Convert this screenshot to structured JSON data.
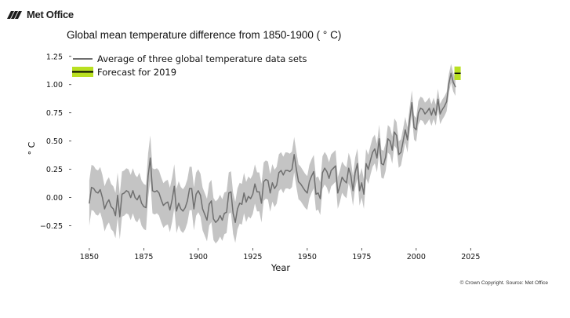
{
  "brand": {
    "name": "Met Office",
    "logo_icon": "met-office-stripes-icon"
  },
  "copyright": "© Crown Copyright. Source: Met Office",
  "chart_data": {
    "type": "line",
    "title": "Global mean temperature difference from 1850-1900 ( ° C)",
    "xlabel": "Year",
    "ylabel": "° C",
    "xlim": [
      1845,
      2031
    ],
    "ylim": [
      -0.42,
      1.29
    ],
    "xticks": [
      1850,
      1875,
      1900,
      1925,
      1950,
      1975,
      2000,
      2025
    ],
    "yticks": [
      -0.25,
      0.0,
      0.25,
      0.5,
      0.75,
      1.0,
      1.25
    ],
    "ytick_labels": [
      "−0.25",
      "0.00",
      "0.25",
      "0.50",
      "0.75",
      "1.00",
      "1.25"
    ],
    "grid": false,
    "legend_placement": "top-left",
    "colors": {
      "series": "#6f6f6f",
      "band": "#c4c4c4",
      "forecast": "#b9e021",
      "forecast_line": "#000000"
    },
    "series": [
      {
        "name": "Average of three global temperature data sets",
        "uncertainty_half_width": [
          0.2,
          0.2,
          0.18,
          0.15,
          0.12,
          0.08
        ],
        "uncertainty_years": [
          1850,
          1880,
          1920,
          1950,
          1990,
          2018
        ],
        "x": [
          1850,
          1851,
          1852,
          1853,
          1854,
          1855,
          1856,
          1857,
          1858,
          1859,
          1860,
          1861,
          1862,
          1863,
          1864,
          1865,
          1866,
          1867,
          1868,
          1869,
          1870,
          1871,
          1872,
          1873,
          1874,
          1875,
          1876,
          1877,
          1878,
          1879,
          1880,
          1881,
          1882,
          1883,
          1884,
          1885,
          1886,
          1887,
          1888,
          1889,
          1890,
          1891,
          1892,
          1893,
          1894,
          1895,
          1896,
          1897,
          1898,
          1899,
          1900,
          1901,
          1902,
          1903,
          1904,
          1905,
          1906,
          1907,
          1908,
          1909,
          1910,
          1911,
          1912,
          1913,
          1914,
          1915,
          1916,
          1917,
          1918,
          1919,
          1920,
          1921,
          1922,
          1923,
          1924,
          1925,
          1926,
          1927,
          1928,
          1929,
          1930,
          1931,
          1932,
          1933,
          1934,
          1935,
          1936,
          1937,
          1938,
          1939,
          1940,
          1941,
          1942,
          1943,
          1944,
          1945,
          1946,
          1947,
          1948,
          1949,
          1950,
          1951,
          1952,
          1953,
          1954,
          1955,
          1956,
          1957,
          1958,
          1959,
          1960,
          1961,
          1962,
          1963,
          1964,
          1965,
          1966,
          1967,
          1968,
          1969,
          1970,
          1971,
          1972,
          1973,
          1974,
          1975,
          1976,
          1977,
          1978,
          1979,
          1980,
          1981,
          1982,
          1983,
          1984,
          1985,
          1986,
          1987,
          1988,
          1989,
          1990,
          1991,
          1992,
          1993,
          1994,
          1995,
          1996,
          1997,
          1998,
          1999,
          2000,
          2001,
          2002,
          2003,
          2004,
          2005,
          2006,
          2007,
          2008,
          2009,
          2010,
          2011,
          2012,
          2013,
          2014,
          2015,
          2016,
          2017,
          2018
        ],
        "y": [
          -0.05,
          0.09,
          0.08,
          0.05,
          0.04,
          0.07,
          0.0,
          -0.1,
          -0.05,
          -0.02,
          -0.08,
          -0.1,
          -0.16,
          0.02,
          -0.17,
          0.03,
          0.04,
          0.06,
          0.05,
          0.0,
          0.06,
          0.0,
          -0.02,
          0.02,
          -0.05,
          -0.08,
          -0.09,
          0.19,
          0.35,
          0.06,
          0.05,
          0.06,
          0.04,
          -0.02,
          -0.07,
          -0.05,
          -0.04,
          -0.11,
          -0.02,
          0.1,
          -0.12,
          -0.05,
          -0.1,
          -0.12,
          -0.09,
          -0.03,
          0.08,
          0.08,
          -0.1,
          0.03,
          0.06,
          0.02,
          -0.1,
          -0.15,
          -0.2,
          -0.06,
          -0.03,
          -0.19,
          -0.22,
          -0.2,
          -0.16,
          -0.2,
          -0.14,
          -0.13,
          0.04,
          0.05,
          -0.14,
          -0.22,
          -0.1,
          -0.05,
          -0.06,
          0.04,
          -0.04,
          0.01,
          -0.01,
          0.03,
          0.12,
          0.05,
          0.05,
          -0.05,
          0.14,
          0.16,
          0.15,
          0.04,
          0.13,
          0.08,
          0.11,
          0.22,
          0.24,
          0.2,
          0.24,
          0.24,
          0.23,
          0.25,
          0.38,
          0.25,
          0.14,
          0.12,
          0.09,
          0.06,
          0.04,
          0.14,
          0.19,
          0.23,
          0.03,
          0.04,
          -0.01,
          0.22,
          0.26,
          0.23,
          0.17,
          0.24,
          0.26,
          0.28,
          0.04,
          0.1,
          0.18,
          0.15,
          0.13,
          0.26,
          0.2,
          0.06,
          0.22,
          0.3,
          0.06,
          0.13,
          0.03,
          0.3,
          0.25,
          0.33,
          0.4,
          0.43,
          0.35,
          0.52,
          0.3,
          0.29,
          0.36,
          0.52,
          0.5,
          0.42,
          0.58,
          0.55,
          0.38,
          0.4,
          0.5,
          0.6,
          0.51,
          0.69,
          0.84,
          0.62,
          0.6,
          0.75,
          0.79,
          0.78,
          0.74,
          0.76,
          0.79,
          0.73,
          0.79,
          0.73,
          0.87,
          0.74,
          0.78,
          0.81,
          0.85,
          1.01,
          1.1,
          1.02,
          0.98
        ]
      },
      {
        "name": "Forecast for 2019",
        "x": [
          2019
        ],
        "y": [
          1.1
        ],
        "range": [
          1.04,
          1.16
        ]
      }
    ]
  }
}
